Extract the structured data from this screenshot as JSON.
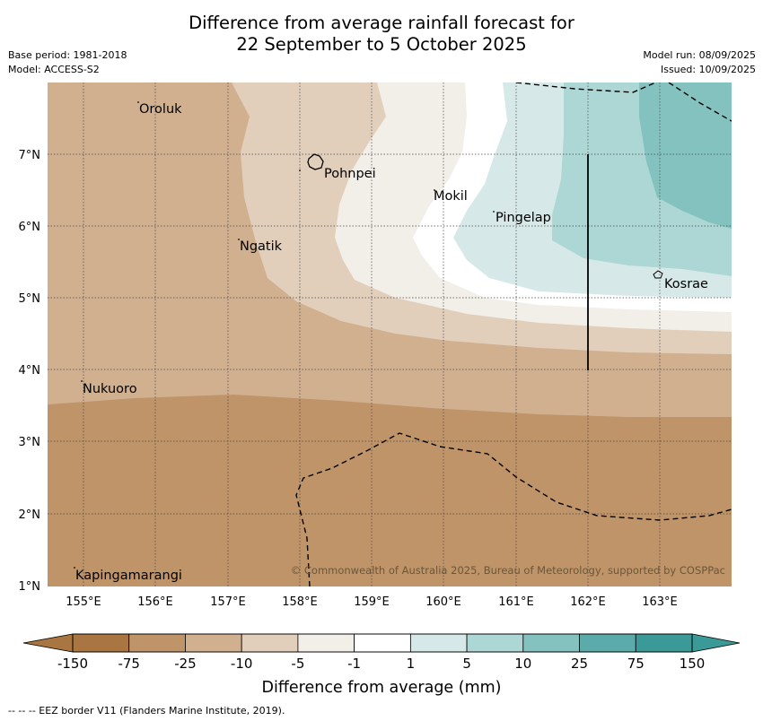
{
  "title": {
    "line1": "Difference from average rainfall forecast for",
    "line2": "22 September to 5 October 2025"
  },
  "meta_left": {
    "base_period": "Base period: 1981-2018",
    "model": "Model: ACCESS-S2"
  },
  "meta_right": {
    "model_run": "Model run: 08/09/2025",
    "issued": "Issued: 10/09/2025"
  },
  "map": {
    "lon_ticks": [
      "155°E",
      "156°E",
      "157°E",
      "158°E",
      "159°E",
      "160°E",
      "161°E",
      "162°E",
      "163°E"
    ],
    "lat_ticks": [
      "7°N",
      "6°N",
      "5°N",
      "4°N",
      "3°N",
      "2°N",
      "1°N"
    ],
    "places": [
      {
        "name": "Oroluk"
      },
      {
        "name": "Pohnpei"
      },
      {
        "name": "Mokil"
      },
      {
        "name": "Pingelap"
      },
      {
        "name": "Ngatik"
      },
      {
        "name": "Kosrae"
      },
      {
        "name": "Nukuoro"
      },
      {
        "name": "Kapingamarangi"
      }
    ],
    "copyright": "© Commonwealth of Australia 2025, Bureau of Meteorology, supported by COSPPac"
  },
  "colorbar": {
    "ticks": [
      "-150",
      "-75",
      "-25",
      "-10",
      "-5",
      "-1",
      "1",
      "5",
      "10",
      "25",
      "75",
      "150"
    ],
    "colors": [
      "#a97540",
      "#bf9469",
      "#d1b090",
      "#e2cfbb",
      "#f2eee8",
      "#ffffff",
      "#d6e9e8",
      "#acd7d4",
      "#84c2c0",
      "#5aaba9",
      "#3b9a97"
    ],
    "label": "Difference from average (mm)"
  },
  "footer": "--  --  -- EEZ border V11 (Flanders Marine Institute, 2019)."
}
